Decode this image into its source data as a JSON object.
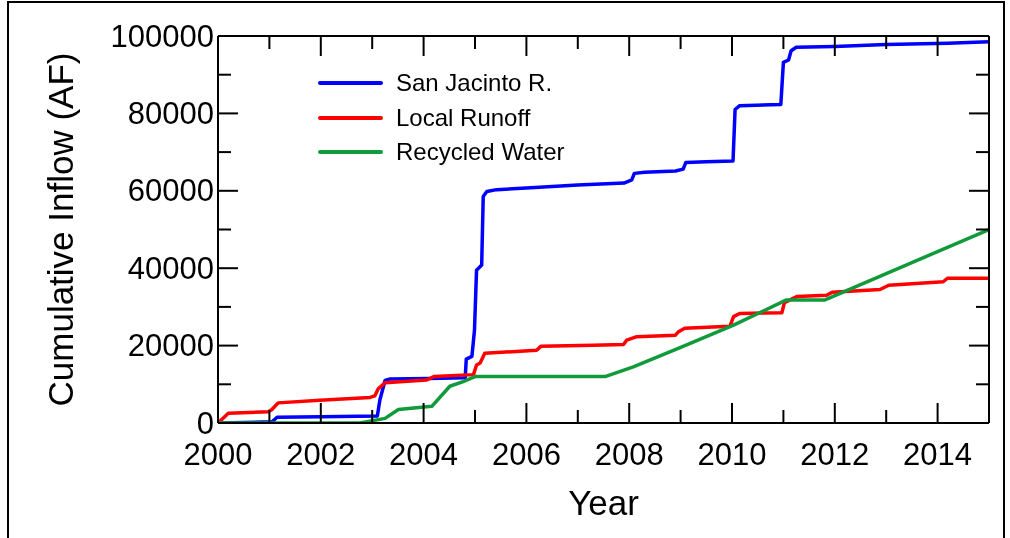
{
  "chart_data": {
    "type": "line",
    "xlabel": "Year",
    "ylabel": "Cumulative Inflow (AF)",
    "xlim": [
      2000,
      2015
    ],
    "ylim": [
      0,
      100000
    ],
    "xticks": [
      2000,
      {
        "value": 2001,
        "label": null
      },
      2002,
      {
        "value": 2003,
        "label": null
      },
      2004,
      {
        "value": 2005,
        "label": null
      },
      2006,
      {
        "value": 2007,
        "label": null
      },
      2008,
      {
        "value": 2009,
        "label": null
      },
      2010,
      {
        "value": 2011,
        "label": null
      },
      2012,
      {
        "value": 2013,
        "label": null
      },
      2014
    ],
    "yticks": [
      0,
      {
        "value": 10000,
        "label": null
      },
      20000,
      {
        "value": 30000,
        "label": null
      },
      40000,
      {
        "value": 50000,
        "label": null
      },
      60000,
      {
        "value": 70000,
        "label": null
      },
      80000,
      {
        "value": 90000,
        "label": null
      },
      100000
    ],
    "legend": "top left",
    "line_style": "solid",
    "series": [
      {
        "name": "San Jacinto R.",
        "color": "#0000ff",
        "x": [
          2000,
          2001.05,
          2001.15,
          2002,
          2003.1,
          2003.15,
          2003.25,
          2003.35,
          2004.1,
          2004.81,
          2004.83,
          2004.94,
          2004.99,
          2005.03,
          2005.13,
          2005.16,
          2005.23,
          2005.42,
          2006,
          2007,
          2007.9,
          2008.05,
          2008.1,
          2008.3,
          2008.9,
          2009.05,
          2009.1,
          2009.5,
          2010.02,
          2010.06,
          2010.15,
          2010.95,
          2011,
          2011.1,
          2011.15,
          2011.25,
          2012,
          2013,
          2014.2,
          2015
        ],
        "values": [
          0,
          300,
          1500,
          1600,
          1800,
          6000,
          11000,
          11400,
          11500,
          11700,
          16500,
          17200,
          24000,
          39500,
          40800,
          58500,
          59800,
          60300,
          60700,
          61500,
          62000,
          62800,
          64500,
          64800,
          65100,
          65600,
          67300,
          67500,
          67700,
          81000,
          82000,
          82300,
          93200,
          93800,
          96200,
          97100,
          97300,
          97800,
          98100,
          98500
        ]
      },
      {
        "name": "Local Runoff",
        "color": "#ff0000",
        "x": [
          2000,
          2000.12,
          2000.2,
          2000.98,
          2001.05,
          2001.17,
          2001.98,
          2002.96,
          2003.05,
          2003.12,
          2003.25,
          2004.06,
          2004.2,
          2004.97,
          2005.03,
          2005.1,
          2005.19,
          2006.2,
          2006.28,
          2007.3,
          2007.89,
          2007.95,
          2008.15,
          2008.9,
          2008.96,
          2009.08,
          2009.96,
          2010.03,
          2010.15,
          2010.97,
          2011.02,
          2011.27,
          2011.84,
          2011.95,
          2012.88,
          2013.05,
          2014.11,
          2014.19,
          2015
        ],
        "values": [
          0,
          1500,
          2500,
          2900,
          3500,
          5200,
          5900,
          6600,
          7000,
          8900,
          10400,
          11100,
          12000,
          12500,
          15000,
          15500,
          18000,
          18800,
          19800,
          20100,
          20300,
          21400,
          22300,
          22700,
          23600,
          24500,
          25000,
          27500,
          28300,
          28500,
          31100,
          32700,
          33000,
          33800,
          34500,
          35600,
          36500,
          37400,
          37400
        ]
      },
      {
        "name": "Recycled Water",
        "color": "#119a3b",
        "x": [
          2000,
          2002.76,
          2003.25,
          2003.51,
          2004.16,
          2004.51,
          2004.77,
          2005.0,
          2007.53,
          2008.08,
          2008.99,
          2010.03,
          2011.06,
          2011.81,
          2015
        ],
        "values": [
          0,
          0,
          1200,
          3500,
          4300,
          9500,
          10700,
          12000,
          12000,
          14500,
          19500,
          25300,
          31800,
          31800,
          50000
        ]
      }
    ]
  }
}
